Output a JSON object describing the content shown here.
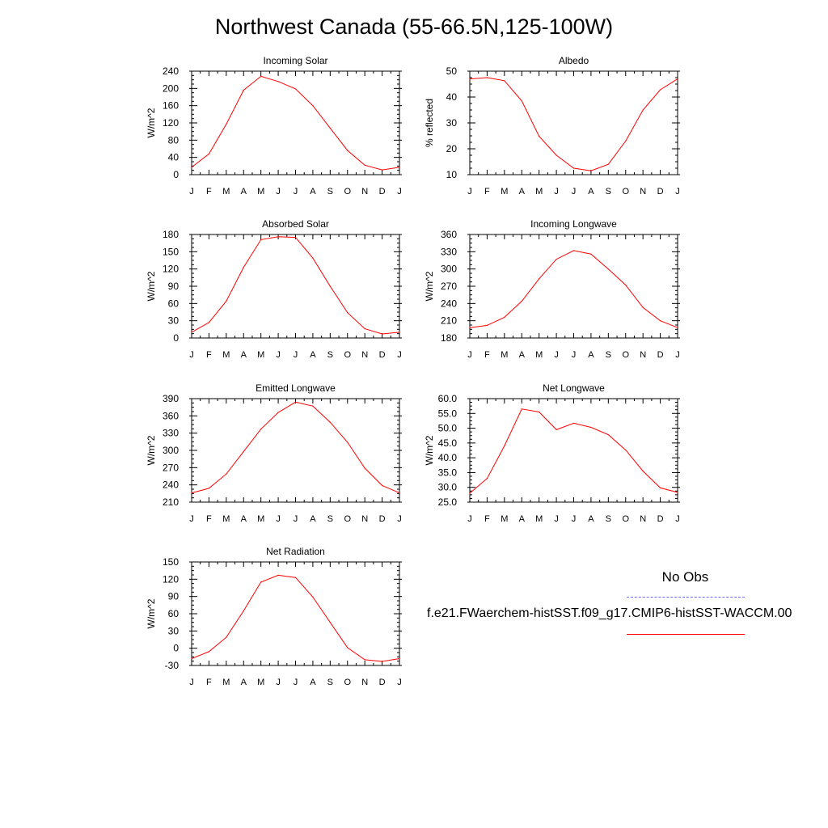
{
  "title": "Northwest Canada (55-66.5N,125-100W)",
  "legend": {
    "obs_label": "No Obs",
    "obs_color": "#6a6aff",
    "case_label": "f.e21.FWaerchem-histSST.f09_g17.CMIP6-histSST-WACCM.00",
    "case_color": "#ff0000"
  },
  "chart_data": [
    {
      "type": "line",
      "title": "Incoming Solar",
      "ylabel": "W/m^2",
      "categories": [
        "J",
        "F",
        "M",
        "A",
        "M",
        "J",
        "J",
        "A",
        "S",
        "O",
        "N",
        "D",
        "J"
      ],
      "ylim": [
        0,
        240
      ],
      "yticks": [
        "0",
        "40",
        "80",
        "120",
        "160",
        "200",
        "240"
      ],
      "series": [
        {
          "color": "#ff0000",
          "values": [
            17,
            48,
            117,
            196,
            228,
            216,
            199,
            160,
            108,
            56,
            22,
            11,
            17
          ]
        }
      ]
    },
    {
      "type": "line",
      "title": "Albedo",
      "ylabel": "% reflected",
      "categories": [
        "J",
        "F",
        "M",
        "A",
        "M",
        "J",
        "J",
        "A",
        "S",
        "O",
        "N",
        "D",
        "J"
      ],
      "ylim": [
        10,
        50
      ],
      "yticks": [
        "10",
        "20",
        "30",
        "40",
        "50"
      ],
      "series": [
        {
          "color": "#ff0000",
          "values": [
            47,
            47.5,
            46.3,
            38.5,
            24.8,
            17.5,
            12.5,
            11.5,
            14,
            23,
            35,
            42.8,
            47
          ]
        }
      ]
    },
    {
      "type": "line",
      "title": "Absorbed Solar",
      "ylabel": "W/m^2",
      "categories": [
        "J",
        "F",
        "M",
        "A",
        "M",
        "J",
        "J",
        "A",
        "S",
        "O",
        "N",
        "D",
        "J"
      ],
      "ylim": [
        0,
        180
      ],
      "yticks": [
        "0",
        "30",
        "60",
        "90",
        "120",
        "150",
        "180"
      ],
      "series": [
        {
          "color": "#ff0000",
          "values": [
            10,
            27,
            64,
            123,
            171,
            176,
            175,
            139,
            90,
            44,
            16,
            7,
            10
          ]
        }
      ]
    },
    {
      "type": "line",
      "title": "Incoming Longwave",
      "ylabel": "W/m^2",
      "categories": [
        "J",
        "F",
        "M",
        "A",
        "M",
        "J",
        "J",
        "A",
        "S",
        "O",
        "N",
        "D",
        "J"
      ],
      "ylim": [
        180,
        360
      ],
      "yticks": [
        "180",
        "210",
        "240",
        "270",
        "300",
        "330",
        "360"
      ],
      "series": [
        {
          "color": "#ff0000",
          "values": [
            198,
            202,
            216,
            244,
            283,
            317,
            332,
            326,
            300,
            272,
            233,
            210,
            198
          ]
        }
      ]
    },
    {
      "type": "line",
      "title": "Emitted Longwave",
      "ylabel": "W/m^2",
      "categories": [
        "J",
        "F",
        "M",
        "A",
        "M",
        "J",
        "J",
        "A",
        "S",
        "O",
        "N",
        "D",
        "J"
      ],
      "ylim": [
        210,
        390
      ],
      "yticks": [
        "210",
        "240",
        "270",
        "300",
        "330",
        "360",
        "390"
      ],
      "series": [
        {
          "color": "#ff0000",
          "values": [
            226,
            234,
            259,
            298,
            337,
            366,
            384,
            377,
            349,
            314,
            269,
            239,
            226
          ]
        }
      ]
    },
    {
      "type": "line",
      "title": "Net Longwave",
      "ylabel": "W/m^2",
      "categories": [
        "J",
        "F",
        "M",
        "A",
        "M",
        "J",
        "J",
        "A",
        "S",
        "O",
        "N",
        "D",
        "J"
      ],
      "ylim": [
        25,
        60
      ],
      "yticks": [
        "25.0",
        "30.0",
        "35.0",
        "40.0",
        "45.0",
        "50.0",
        "55.0",
        "60.0"
      ],
      "series": [
        {
          "color": "#ff0000",
          "values": [
            28,
            33,
            44,
            56.5,
            55.5,
            49.5,
            51.7,
            50.3,
            47.8,
            42.6,
            35.5,
            29.8,
            28.3
          ]
        }
      ]
    },
    {
      "type": "line",
      "title": "Net Radiation",
      "ylabel": "W/m^2",
      "categories": [
        "J",
        "F",
        "M",
        "A",
        "M",
        "J",
        "J",
        "A",
        "S",
        "O",
        "N",
        "D",
        "J"
      ],
      "ylim": [
        -30,
        150
      ],
      "yticks": [
        "-30",
        "0",
        "30",
        "60",
        "90",
        "120",
        "150"
      ],
      "series": [
        {
          "color": "#ff0000",
          "values": [
            -18,
            -6,
            19,
            65,
            115,
            127,
            123,
            89,
            45,
            1,
            -20,
            -23,
            -18
          ]
        }
      ]
    }
  ]
}
